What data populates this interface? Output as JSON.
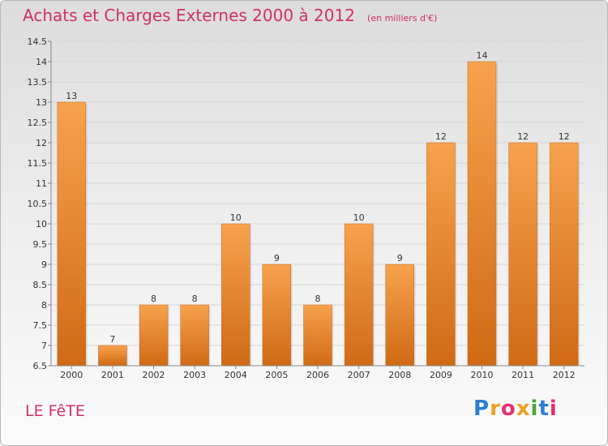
{
  "header": {
    "title": "Achats et Charges Externes 2000 à 2012",
    "unit": "(en milliers d'€)"
  },
  "footer": {
    "place": "LE FêTE",
    "logo_letters": [
      "P",
      "r",
      "o",
      "x",
      "i",
      "t",
      "i"
    ],
    "logo_colors": [
      "#2a7fd0",
      "#f0a020",
      "#e83070",
      "#f0a020",
      "#44aa33",
      "#2a7fd0",
      "#e83070"
    ]
  },
  "colors": {
    "title": "#d0306a",
    "bar_top": "#f7a24e",
    "bar_bottom": "#d06a15",
    "grid": "#d6d6d6"
  },
  "chart_data": {
    "type": "bar",
    "title": "Achats et Charges Externes 2000 à 2012",
    "ylabel": "(en milliers d'€)",
    "xlabel": "",
    "categories": [
      "2000",
      "2001",
      "2002",
      "2003",
      "2004",
      "2005",
      "2006",
      "2007",
      "2008",
      "2009",
      "2010",
      "2011",
      "2012"
    ],
    "values": [
      13,
      7,
      8,
      8,
      10,
      9,
      8,
      10,
      9,
      12,
      14,
      12,
      12
    ],
    "ylim": [
      6.5,
      14.5
    ],
    "yticks": [
      "6.5",
      "7",
      "7.5",
      "8",
      "8.5",
      "9",
      "9.5",
      "10",
      "10.5",
      "11",
      "11.5",
      "12",
      "12.5",
      "13",
      "13.5",
      "14",
      "14.5"
    ],
    "grid": true
  }
}
